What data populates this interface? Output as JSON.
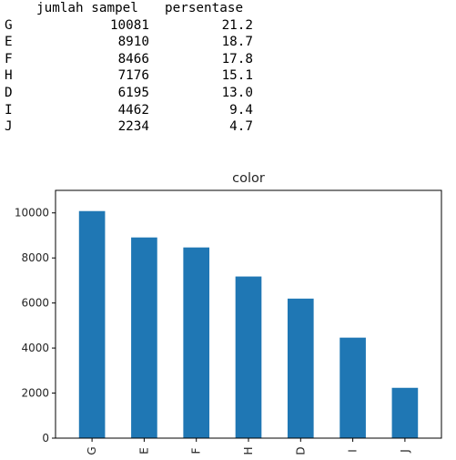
{
  "table": {
    "headers": [
      "jumlah sampel",
      "persentase"
    ],
    "rows": [
      {
        "label": "G",
        "count": "10081",
        "pct": "21.2"
      },
      {
        "label": "E",
        "count": "8910",
        "pct": "18.7"
      },
      {
        "label": "F",
        "count": "8466",
        "pct": "17.8"
      },
      {
        "label": "H",
        "count": "7176",
        "pct": "15.1"
      },
      {
        "label": "D",
        "count": "6195",
        "pct": "13.0"
      },
      {
        "label": "I",
        "count": "4462",
        "pct": "9.4"
      },
      {
        "label": "J",
        "count": "2234",
        "pct": "4.7"
      }
    ]
  },
  "chart_data": {
    "type": "bar",
    "title": "color",
    "xlabel": "",
    "ylabel": "",
    "categories": [
      "G",
      "E",
      "F",
      "H",
      "D",
      "I",
      "J"
    ],
    "values": [
      10081,
      8910,
      8466,
      7176,
      6195,
      4462,
      2234
    ],
    "ylim": [
      0,
      11000
    ],
    "yticks": [
      "0",
      "2000",
      "4000",
      "6000",
      "8000",
      "10000"
    ],
    "grid": false,
    "bar_color": "#1f77b4"
  }
}
